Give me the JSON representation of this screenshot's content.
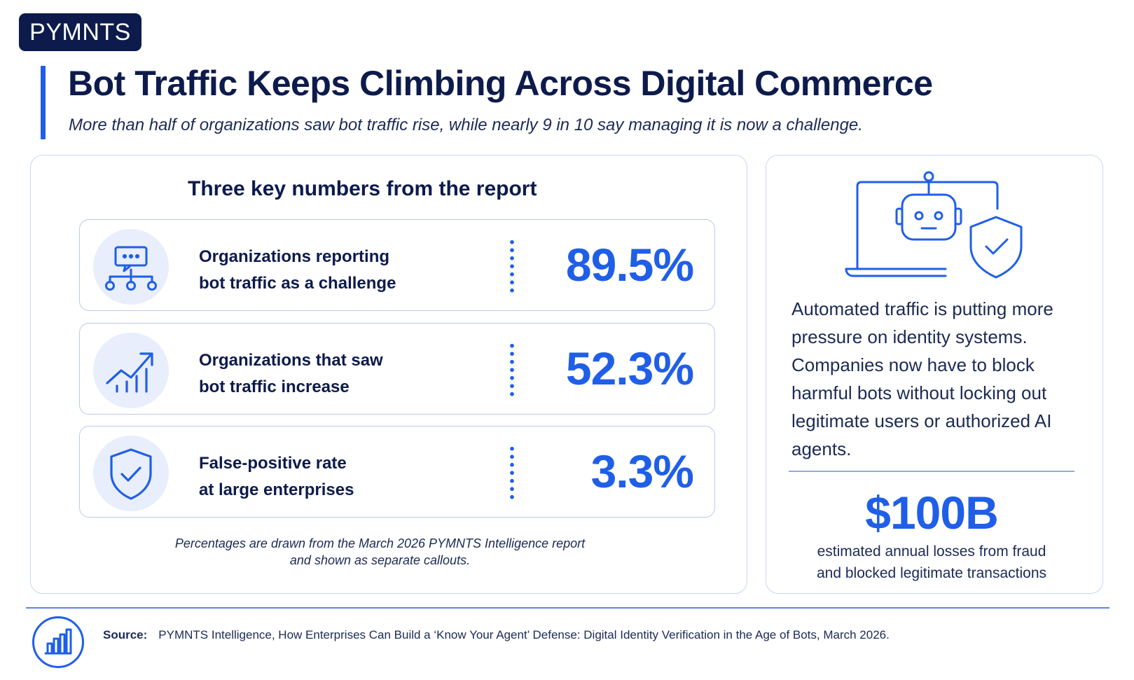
{
  "brand": {
    "logo_text": "PYMNTS"
  },
  "header": {
    "title": "Bot Traffic Keeps Climbing Across Digital Commerce",
    "subtitle": "More than half of organizations saw bot traffic rise, while nearly 9 in 10 say managing it is now a challenge."
  },
  "key_numbers": {
    "heading": "Three key numbers from the report",
    "items": [
      {
        "label_line1": "Organizations reporting",
        "label_line2": "bot traffic as a challenge",
        "value": "89.5%",
        "icon": "chat-network-icon"
      },
      {
        "label_line1": "Organizations that saw",
        "label_line2": "bot traffic increase",
        "value": "52.3%",
        "icon": "trend-up-icon"
      },
      {
        "label_line1": "False-positive rate",
        "label_line2": "at large enterprises",
        "value": "3.3%",
        "icon": "shield-check-icon"
      }
    ],
    "footnote_line1": "Percentages are drawn from the March 2026 PYMNTS Intelligence report",
    "footnote_line2": "and shown as separate callouts."
  },
  "side_panel": {
    "illustration": "robot-laptop-shield-icon",
    "text": "Automated traffic is putting more pressure on identity systems. Companies now have to block harmful bots without locking out legitimate users or authorized AI agents.",
    "stat_value": "$100B",
    "stat_desc_line1": "estimated annual losses from fraud",
    "stat_desc_line2": "and blocked legitimate transactions"
  },
  "source": {
    "label": "Source:",
    "text": "PYMNTS Intelligence, How Enterprises Can Build a ‘Know Your Agent’ Defense: Digital Identity Verification in the Age of Bots, March 2026.",
    "icon": "bar-chart-icon"
  },
  "colors": {
    "accent": "#1f5fe8",
    "navy": "#0d1b4c",
    "card_border": "#b9caef",
    "icon_bg": "#e8eefb"
  }
}
